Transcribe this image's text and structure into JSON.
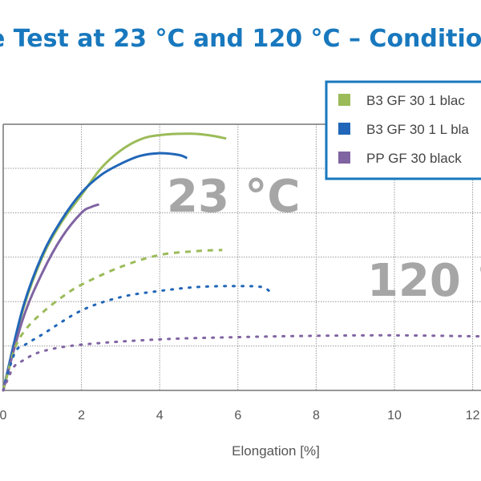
{
  "chart_data": {
    "type": "line",
    "title": "e Test at 23 °C and 120 °C – Condition",
    "xlabel": "Elongation [%]",
    "ylabel": "",
    "xlim": [
      0,
      12.2
    ],
    "ylim": [
      0,
      6
    ],
    "x_ticks": [
      "0",
      "2",
      "4",
      "6",
      "8",
      "10",
      "12"
    ],
    "grid": true,
    "legend_position": "top-right",
    "legend": [
      {
        "label": "B3 GF 30 1 blac",
        "color": "#9bbb59"
      },
      {
        "label": "B3 GF 30 1 L bla",
        "color": "#2166b8"
      },
      {
        "label": "PP GF 30 black",
        "color": "#8064a2"
      }
    ],
    "annotations": [
      "23 °C",
      "120 °"
    ],
    "series": [
      {
        "legend_index": 0,
        "condition": "23 °C",
        "style": "solid",
        "color": "#9bbb59",
        "points": [
          [
            0,
            0
          ],
          [
            0.5,
            1.8
          ],
          [
            1,
            3.0
          ],
          [
            1.5,
            3.8
          ],
          [
            2,
            4.4
          ],
          [
            2.5,
            5.0
          ],
          [
            3,
            5.4
          ],
          [
            3.5,
            5.65
          ],
          [
            4,
            5.75
          ],
          [
            4.8,
            5.78
          ],
          [
            5.3,
            5.74
          ],
          [
            5.7,
            5.67
          ]
        ]
      },
      {
        "legend_index": 1,
        "condition": "23 °C",
        "style": "solid",
        "color": "#2166b8",
        "points": [
          [
            0,
            0
          ],
          [
            0.5,
            1.85
          ],
          [
            1,
            3.05
          ],
          [
            1.5,
            3.85
          ],
          [
            2,
            4.45
          ],
          [
            2.5,
            4.85
          ],
          [
            3,
            5.1
          ],
          [
            3.5,
            5.28
          ],
          [
            4,
            5.34
          ],
          [
            4.5,
            5.3
          ],
          [
            4.7,
            5.23
          ]
        ]
      },
      {
        "legend_index": 2,
        "condition": "23 °C",
        "style": "solid",
        "color": "#8064a2",
        "points": [
          [
            0,
            0
          ],
          [
            0.5,
            1.6
          ],
          [
            1,
            2.65
          ],
          [
            1.5,
            3.45
          ],
          [
            2,
            4.0
          ],
          [
            2.25,
            4.13
          ],
          [
            2.45,
            4.19
          ]
        ]
      },
      {
        "legend_index": 0,
        "condition": "120 °C",
        "style": "dashed",
        "color": "#9bbb59",
        "points": [
          [
            0,
            0
          ],
          [
            0.3,
            0.95
          ],
          [
            0.6,
            1.4
          ],
          [
            1,
            1.75
          ],
          [
            1.5,
            2.1
          ],
          [
            2,
            2.38
          ],
          [
            3,
            2.78
          ],
          [
            4,
            3.05
          ],
          [
            5,
            3.14
          ],
          [
            5.6,
            3.16
          ]
        ]
      },
      {
        "legend_index": 1,
        "condition": "120 °C",
        "style": "dotted",
        "color": "#2166b8",
        "points": [
          [
            0,
            0
          ],
          [
            0.3,
            0.85
          ],
          [
            0.6,
            1.05
          ],
          [
            1,
            1.26
          ],
          [
            2,
            1.8
          ],
          [
            3,
            2.1
          ],
          [
            4,
            2.24
          ],
          [
            5,
            2.33
          ],
          [
            6,
            2.35
          ],
          [
            6.6,
            2.33
          ],
          [
            6.8,
            2.24
          ]
        ]
      },
      {
        "legend_index": 2,
        "condition": "120 °C",
        "style": "dotted",
        "color": "#8064a2",
        "points": [
          [
            0,
            0
          ],
          [
            0.25,
            0.5
          ],
          [
            0.5,
            0.67
          ],
          [
            1,
            0.88
          ],
          [
            2,
            1.03
          ],
          [
            4,
            1.15
          ],
          [
            6,
            1.2
          ],
          [
            8,
            1.23
          ],
          [
            10,
            1.24
          ],
          [
            12,
            1.22
          ],
          [
            12.3,
            1.22
          ]
        ]
      }
    ]
  }
}
